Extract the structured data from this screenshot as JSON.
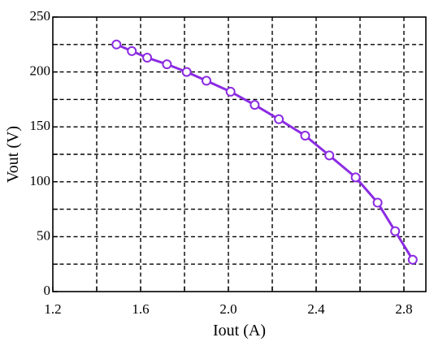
{
  "chart_data": {
    "type": "line",
    "title": "",
    "xlabel": "Iout (A)",
    "ylabel": "Vout (V)",
    "xlim": [
      1.2,
      2.9
    ],
    "ylim": [
      0,
      250
    ],
    "x_ticks": [
      1.2,
      1.4,
      1.6,
      1.8,
      2.0,
      2.2,
      2.4,
      2.6,
      2.8
    ],
    "x_tick_labels": [
      "1.2",
      "1.6",
      "2.0",
      "2.4",
      "2.8"
    ],
    "x_tick_label_values": [
      1.2,
      1.6,
      2.0,
      2.4,
      2.8
    ],
    "y_ticks": [
      0,
      25,
      50,
      75,
      100,
      125,
      150,
      175,
      200,
      225,
      250
    ],
    "y_tick_labels": [
      "0",
      "50",
      "100",
      "150",
      "200",
      "250"
    ],
    "y_tick_label_values": [
      0,
      50,
      100,
      150,
      200,
      250
    ],
    "grid": true,
    "color": "#8b2be2",
    "series": [
      {
        "x": [
          1.49,
          1.56,
          1.63,
          1.72,
          1.81,
          1.9,
          2.01,
          2.12,
          2.23,
          2.35,
          2.46,
          2.58,
          2.68,
          2.76,
          2.84
        ],
        "y": [
          225,
          219,
          213,
          207,
          200,
          192,
          182,
          170,
          157,
          142,
          124,
          104,
          81,
          55,
          29
        ]
      }
    ]
  }
}
